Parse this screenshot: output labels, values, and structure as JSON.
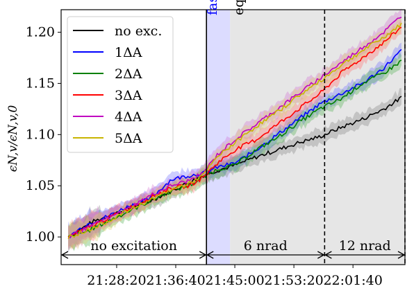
{
  "chart_data": {
    "type": "line",
    "title": "",
    "xlabel": "",
    "ylabel": "ϵ_{N,v}/ϵ_{N,v,0}",
    "ylabel_display": "ϵN,v/ϵN,v,0",
    "xlim": [
      "21:20:30",
      "22:09:00"
    ],
    "ylim": [
      0.973,
      1.222
    ],
    "y_ticks": [
      1.0,
      1.05,
      1.1,
      1.15,
      1.2
    ],
    "y_tick_labels": [
      "1.00",
      "1.05",
      "1.10",
      "1.15",
      "1.20"
    ],
    "x_ticks": [
      "21:28:20",
      "21:36:40",
      "21:45:00",
      "21:53:20",
      "22:01:40"
    ],
    "grid": false,
    "legend_position": "upper-left",
    "series": [
      {
        "name": "no exc.",
        "color": "#000000",
        "band_color": "#808080",
        "x": [
          "21:21:30",
          "21:25:00",
          "21:29:00",
          "21:33:00",
          "21:37:00",
          "21:40:30",
          "21:42:30",
          "21:45:00",
          "21:48:00",
          "21:51:00",
          "21:54:00",
          "21:57:00",
          "22:00:00",
          "22:03:00",
          "22:06:00",
          "22:08:30"
        ],
        "y": [
          1.0,
          1.015,
          1.025,
          1.035,
          1.048,
          1.06,
          1.065,
          1.07,
          1.078,
          1.085,
          1.092,
          1.098,
          1.107,
          1.115,
          1.125,
          1.136
        ]
      },
      {
        "name": "1ΔA",
        "color": "#0000ff",
        "band_color": "#7070ff",
        "x": [
          "21:21:30",
          "21:24:00",
          "21:27:00",
          "21:30:00",
          "21:33:00",
          "21:36:00",
          "21:38:30",
          "21:40:30",
          "21:42:30",
          "21:45:00",
          "21:48:00",
          "21:51:00",
          "21:54:00",
          "21:57:00",
          "22:00:00",
          "22:03:00",
          "22:06:00",
          "22:08:30"
        ],
        "y": [
          1.0,
          1.012,
          1.02,
          1.03,
          1.037,
          1.056,
          1.06,
          1.062,
          1.068,
          1.072,
          1.085,
          1.1,
          1.115,
          1.13,
          1.14,
          1.15,
          1.165,
          1.182
        ]
      },
      {
        "name": "2ΔA",
        "color": "#008000",
        "band_color": "#4caf4c",
        "x": [
          "21:21:30",
          "21:24:00",
          "21:27:00",
          "21:30:00",
          "21:33:00",
          "21:36:00",
          "21:38:30",
          "21:40:30",
          "21:42:30",
          "21:45:00",
          "21:48:00",
          "21:51:00",
          "21:54:00",
          "21:57:00",
          "22:00:00",
          "22:03:00",
          "22:06:00",
          "22:08:30"
        ],
        "y": [
          1.0,
          1.005,
          1.015,
          1.025,
          1.035,
          1.045,
          1.05,
          1.058,
          1.066,
          1.07,
          1.085,
          1.097,
          1.112,
          1.125,
          1.135,
          1.15,
          1.16,
          1.172
        ]
      },
      {
        "name": "3ΔA",
        "color": "#ff0000",
        "band_color": "#ff7070",
        "x": [
          "21:21:30",
          "21:24:00",
          "21:27:00",
          "21:30:00",
          "21:33:00",
          "21:36:00",
          "21:38:30",
          "21:40:30",
          "21:42:30",
          "21:45:00",
          "21:48:00",
          "21:51:00",
          "21:54:00",
          "21:57:00",
          "22:00:00",
          "22:03:00",
          "22:06:00",
          "22:08:30"
        ],
        "y": [
          1.0,
          1.008,
          1.018,
          1.028,
          1.038,
          1.048,
          1.05,
          1.058,
          1.072,
          1.085,
          1.095,
          1.11,
          1.125,
          1.14,
          1.16,
          1.175,
          1.19,
          1.205
        ]
      },
      {
        "name": "4ΔA",
        "color": "#c000c0",
        "band_color": "#d070d0",
        "x": [
          "21:21:30",
          "21:24:00",
          "21:27:00",
          "21:30:00",
          "21:33:00",
          "21:36:00",
          "21:38:30",
          "21:40:30",
          "21:42:30",
          "21:45:00",
          "21:48:00",
          "21:51:00",
          "21:54:00",
          "21:57:00",
          "22:00:00",
          "22:03:00",
          "22:06:00",
          "22:08:30"
        ],
        "y": [
          1.0,
          1.008,
          1.018,
          1.028,
          1.04,
          1.05,
          1.055,
          1.062,
          1.08,
          1.095,
          1.11,
          1.125,
          1.14,
          1.155,
          1.17,
          1.185,
          1.2,
          1.216
        ]
      },
      {
        "name": "5ΔA",
        "color": "#c8b400",
        "band_color": "#e0d070",
        "x": [
          "21:21:30",
          "21:24:00",
          "21:27:00",
          "21:30:00",
          "21:33:00",
          "21:36:00",
          "21:38:30",
          "21:40:30",
          "21:42:30",
          "21:45:00",
          "21:48:00",
          "21:51:00",
          "21:54:00",
          "21:57:00",
          "22:00:00",
          "22:03:00",
          "22:06:00",
          "22:08:30"
        ],
        "y": [
          1.0,
          1.006,
          1.015,
          1.026,
          1.036,
          1.046,
          1.052,
          1.06,
          1.078,
          1.092,
          1.108,
          1.122,
          1.138,
          1.152,
          1.168,
          1.182,
          1.195,
          1.208
        ]
      }
    ],
    "regions": [
      {
        "label": "fast adjustment",
        "color": "#0000ff",
        "from": "21:41:00",
        "to": "21:44:20",
        "fill": "#dcdcff"
      },
      {
        "label": "equilibrium state",
        "color": "#000000",
        "from": "21:44:20",
        "to": "22:09:00",
        "fill": "#e6e6e6"
      }
    ],
    "vlines": [
      "21:41:00",
      "21:57:40",
      "22:09:00"
    ],
    "spans": [
      {
        "label": "no excitation",
        "from": "21:20:30",
        "to": "21:41:00"
      },
      {
        "label": "6 nrad",
        "from": "21:41:00",
        "to": "21:57:40"
      },
      {
        "label": "12 nrad",
        "from": "21:57:40",
        "to": "22:09:00"
      }
    ]
  }
}
